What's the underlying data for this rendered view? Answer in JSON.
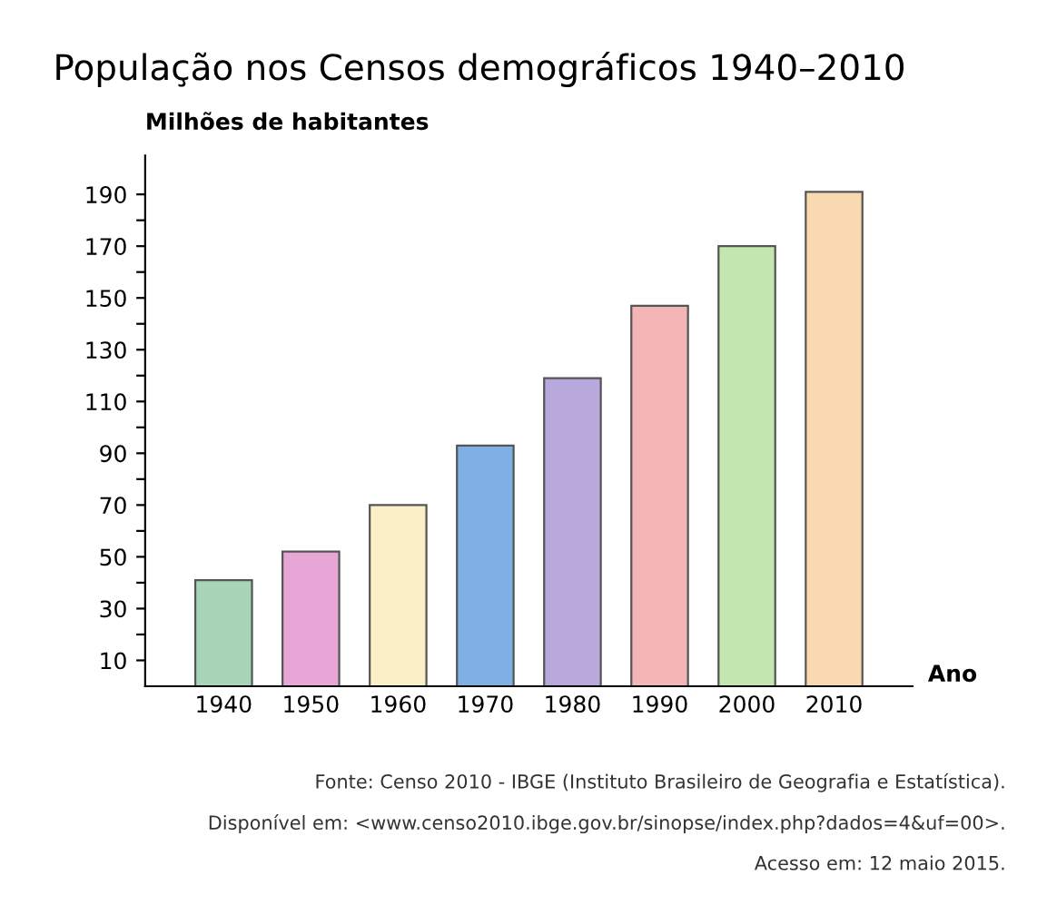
{
  "chart_data": {
    "type": "bar",
    "title": "População nos Censos demográficos 1940–2010",
    "ylabel": "Milhões de habitantes",
    "xlabel": "Ano",
    "categories": [
      "1940",
      "1950",
      "1960",
      "1970",
      "1980",
      "1990",
      "2000",
      "2010"
    ],
    "values": [
      41,
      52,
      70,
      93,
      119,
      147,
      170,
      191
    ],
    "colors": [
      "#a8d5b8",
      "#e7a6d6",
      "#fbefc8",
      "#7fb0e3",
      "#b9a8dc",
      "#f3b5b5",
      "#c4e6b0",
      "#f8d9b0"
    ],
    "ylim": [
      0,
      205
    ],
    "yticks": [
      10,
      {
        "value": 20,
        "label": null
      },
      30,
      {
        "value": 40,
        "label": null
      },
      50,
      {
        "value": 60,
        "label": null
      },
      70,
      {
        "value": 80,
        "label": null
      },
      90,
      {
        "value": 100,
        "label": null
      },
      110,
      {
        "value": 120,
        "label": null
      },
      130,
      {
        "value": 140,
        "label": null
      },
      150,
      {
        "value": 160,
        "label": null
      },
      170,
      {
        "value": 180,
        "label": null
      },
      190
    ],
    "grid": false,
    "annotations": [
      "Fonte: Censo 2010 - IBGE (Instituto Brasileiro de Geografia e Estatística).",
      "Disponível em: <www.censo2010.ibge.gov.br/sinopse/index.php?dados=4&uf=00>.",
      "Acesso em: 12 maio 2015."
    ]
  }
}
